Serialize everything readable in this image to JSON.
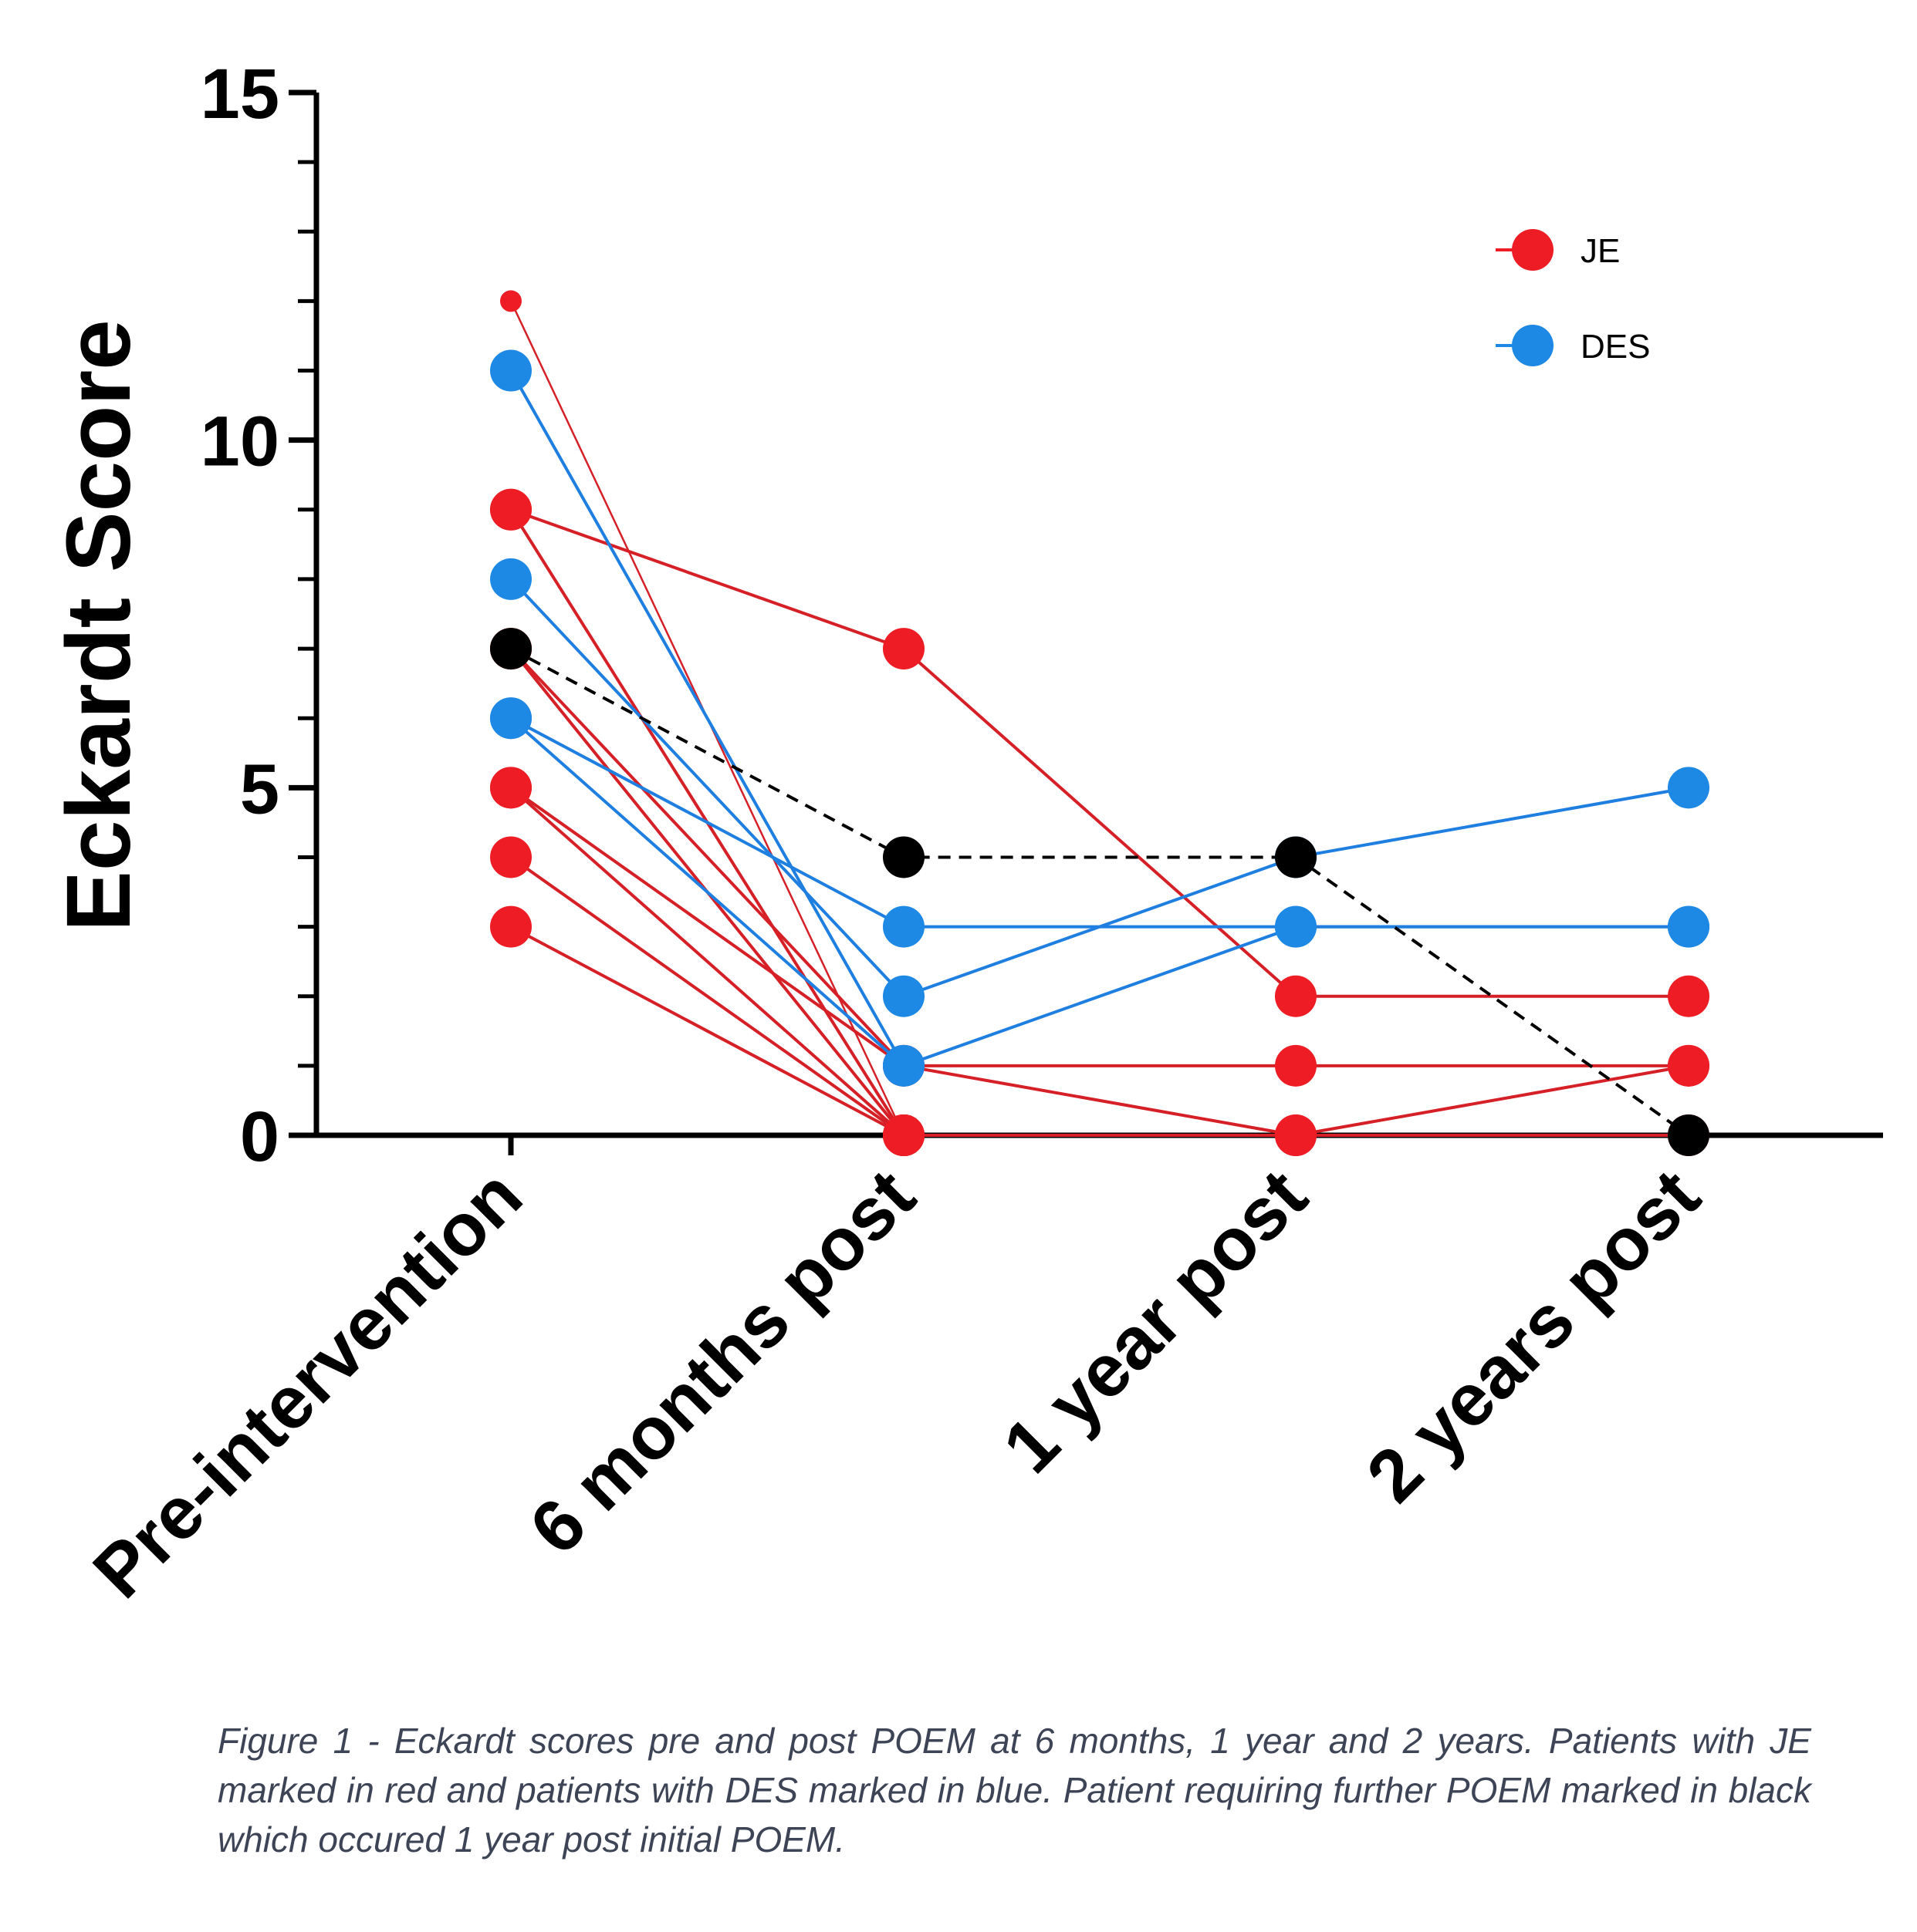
{
  "chart_data": {
    "type": "line",
    "ylabel": "Eckardt Score",
    "xlabel": "",
    "ylim": [
      0,
      15
    ],
    "y_major_ticks": [
      0,
      5,
      10,
      15
    ],
    "y_minor_step": 1,
    "categories": [
      "Pre-intervention",
      "6 months post",
      "1 year post",
      "2 years post"
    ],
    "legend": {
      "position": "top-right",
      "entries": [
        {
          "label": "JE",
          "color": "#ee1c25"
        },
        {
          "label": "DES",
          "color": "#1e88e5"
        }
      ]
    },
    "colors": {
      "JE": "#ee1c25",
      "DES": "#1e88e5",
      "further_poem": "#000000",
      "JE_line": "#d62027",
      "DES_line": "#1e7fe0"
    },
    "series": [
      {
        "group": "JE",
        "values": [
          9,
          7,
          2,
          2
        ]
      },
      {
        "group": "JE",
        "values": [
          9,
          0,
          null,
          null
        ]
      },
      {
        "group": "JE",
        "values": [
          12,
          0,
          null,
          null
        ],
        "thin": true
      },
      {
        "group": "JE",
        "values": [
          7,
          1,
          1,
          1
        ]
      },
      {
        "group": "JE",
        "values": [
          7,
          0,
          null,
          null
        ]
      },
      {
        "group": "JE",
        "values": [
          5,
          1,
          0,
          1
        ]
      },
      {
        "group": "JE",
        "values": [
          5,
          0,
          null,
          null
        ]
      },
      {
        "group": "JE",
        "values": [
          4,
          0,
          0,
          0
        ]
      },
      {
        "group": "JE",
        "values": [
          3,
          0,
          null,
          null
        ]
      },
      {
        "group": "DES",
        "values": [
          11,
          1,
          3,
          3
        ]
      },
      {
        "group": "DES",
        "values": [
          8,
          2,
          4,
          5
        ]
      },
      {
        "group": "DES",
        "values": [
          6,
          3,
          3,
          3
        ]
      },
      {
        "group": "DES",
        "values": [
          6,
          1,
          null,
          null
        ]
      },
      {
        "group": "further_poem",
        "values": [
          7,
          4,
          4,
          0
        ],
        "dashed": true
      }
    ]
  },
  "caption": "Figure 1 - Eckardt scores pre and post POEM at 6 months, 1 year and 2 years. Patients with JE marked in red and patients with DES marked in blue. Patient requiring further POEM marked in black which occured 1 year post initial POEM."
}
